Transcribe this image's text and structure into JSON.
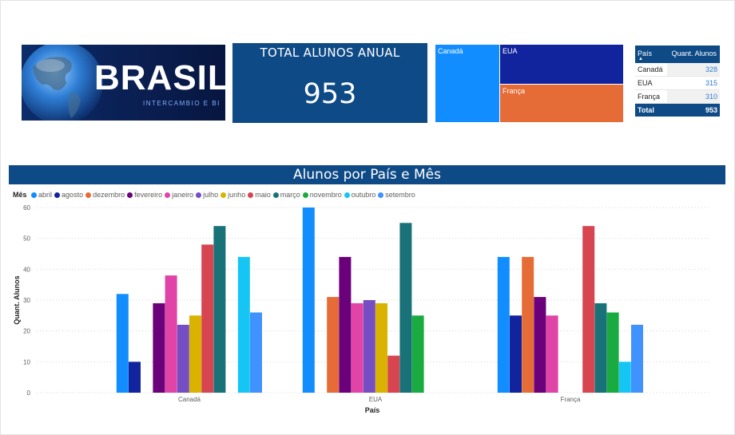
{
  "logo": {
    "brand": "BRASIL",
    "tagline": "INTERCAMBIO E BI"
  },
  "kpi": {
    "title": "TOTAL ALUNOS ANUAL",
    "value": "953"
  },
  "treemap": {
    "items": [
      {
        "label": "Canadá",
        "value": 328,
        "color": "#118dff"
      },
      {
        "label": "EUA",
        "value": 315,
        "color": "#12239e"
      },
      {
        "label": "França",
        "value": 310,
        "color": "#e66c37"
      }
    ]
  },
  "table": {
    "headers": {
      "country": "País",
      "count": "Quant. Alunos"
    },
    "rows": [
      {
        "country": "Canadá",
        "count": "328"
      },
      {
        "country": "EUA",
        "count": "315"
      },
      {
        "country": "França",
        "count": "310"
      }
    ],
    "total": {
      "label": "Total",
      "value": "953"
    }
  },
  "chart_header": "Alunos por País e Mês",
  "chart_data": {
    "type": "bar",
    "title": "Alunos por País e Mês",
    "legend_title": "Mês",
    "legend_position": "top-left",
    "xlabel": "País",
    "ylabel": "Quant. Alunos",
    "ylim": [
      0,
      60
    ],
    "yticks": [
      0,
      10,
      20,
      30,
      40,
      50,
      60
    ],
    "grid": true,
    "categories": [
      "Canadá",
      "EUA",
      "França"
    ],
    "series": [
      {
        "name": "abril",
        "color": "#118dff",
        "values": [
          32,
          60,
          44
        ]
      },
      {
        "name": "agosto",
        "color": "#12239e",
        "values": [
          10,
          null,
          25
        ]
      },
      {
        "name": "dezembro",
        "color": "#e66c37",
        "values": [
          null,
          31,
          44
        ]
      },
      {
        "name": "fevereiro",
        "color": "#6b007b",
        "values": [
          29,
          44,
          31
        ]
      },
      {
        "name": "janeiro",
        "color": "#e044a7",
        "values": [
          38,
          29,
          25
        ]
      },
      {
        "name": "julho",
        "color": "#744ec2",
        "values": [
          22,
          30,
          null
        ]
      },
      {
        "name": "junho",
        "color": "#d9b300",
        "values": [
          25,
          29,
          null
        ]
      },
      {
        "name": "maio",
        "color": "#d64550",
        "values": [
          48,
          12,
          54
        ]
      },
      {
        "name": "março",
        "color": "#197278",
        "values": [
          54,
          55,
          29
        ]
      },
      {
        "name": "novembro",
        "color": "#1aab40",
        "values": [
          null,
          25,
          26
        ]
      },
      {
        "name": "outubro",
        "color": "#15c6f4",
        "values": [
          44,
          null,
          10
        ]
      },
      {
        "name": "setembro",
        "color": "#4092ff",
        "values": [
          26,
          null,
          22
        ]
      }
    ]
  }
}
